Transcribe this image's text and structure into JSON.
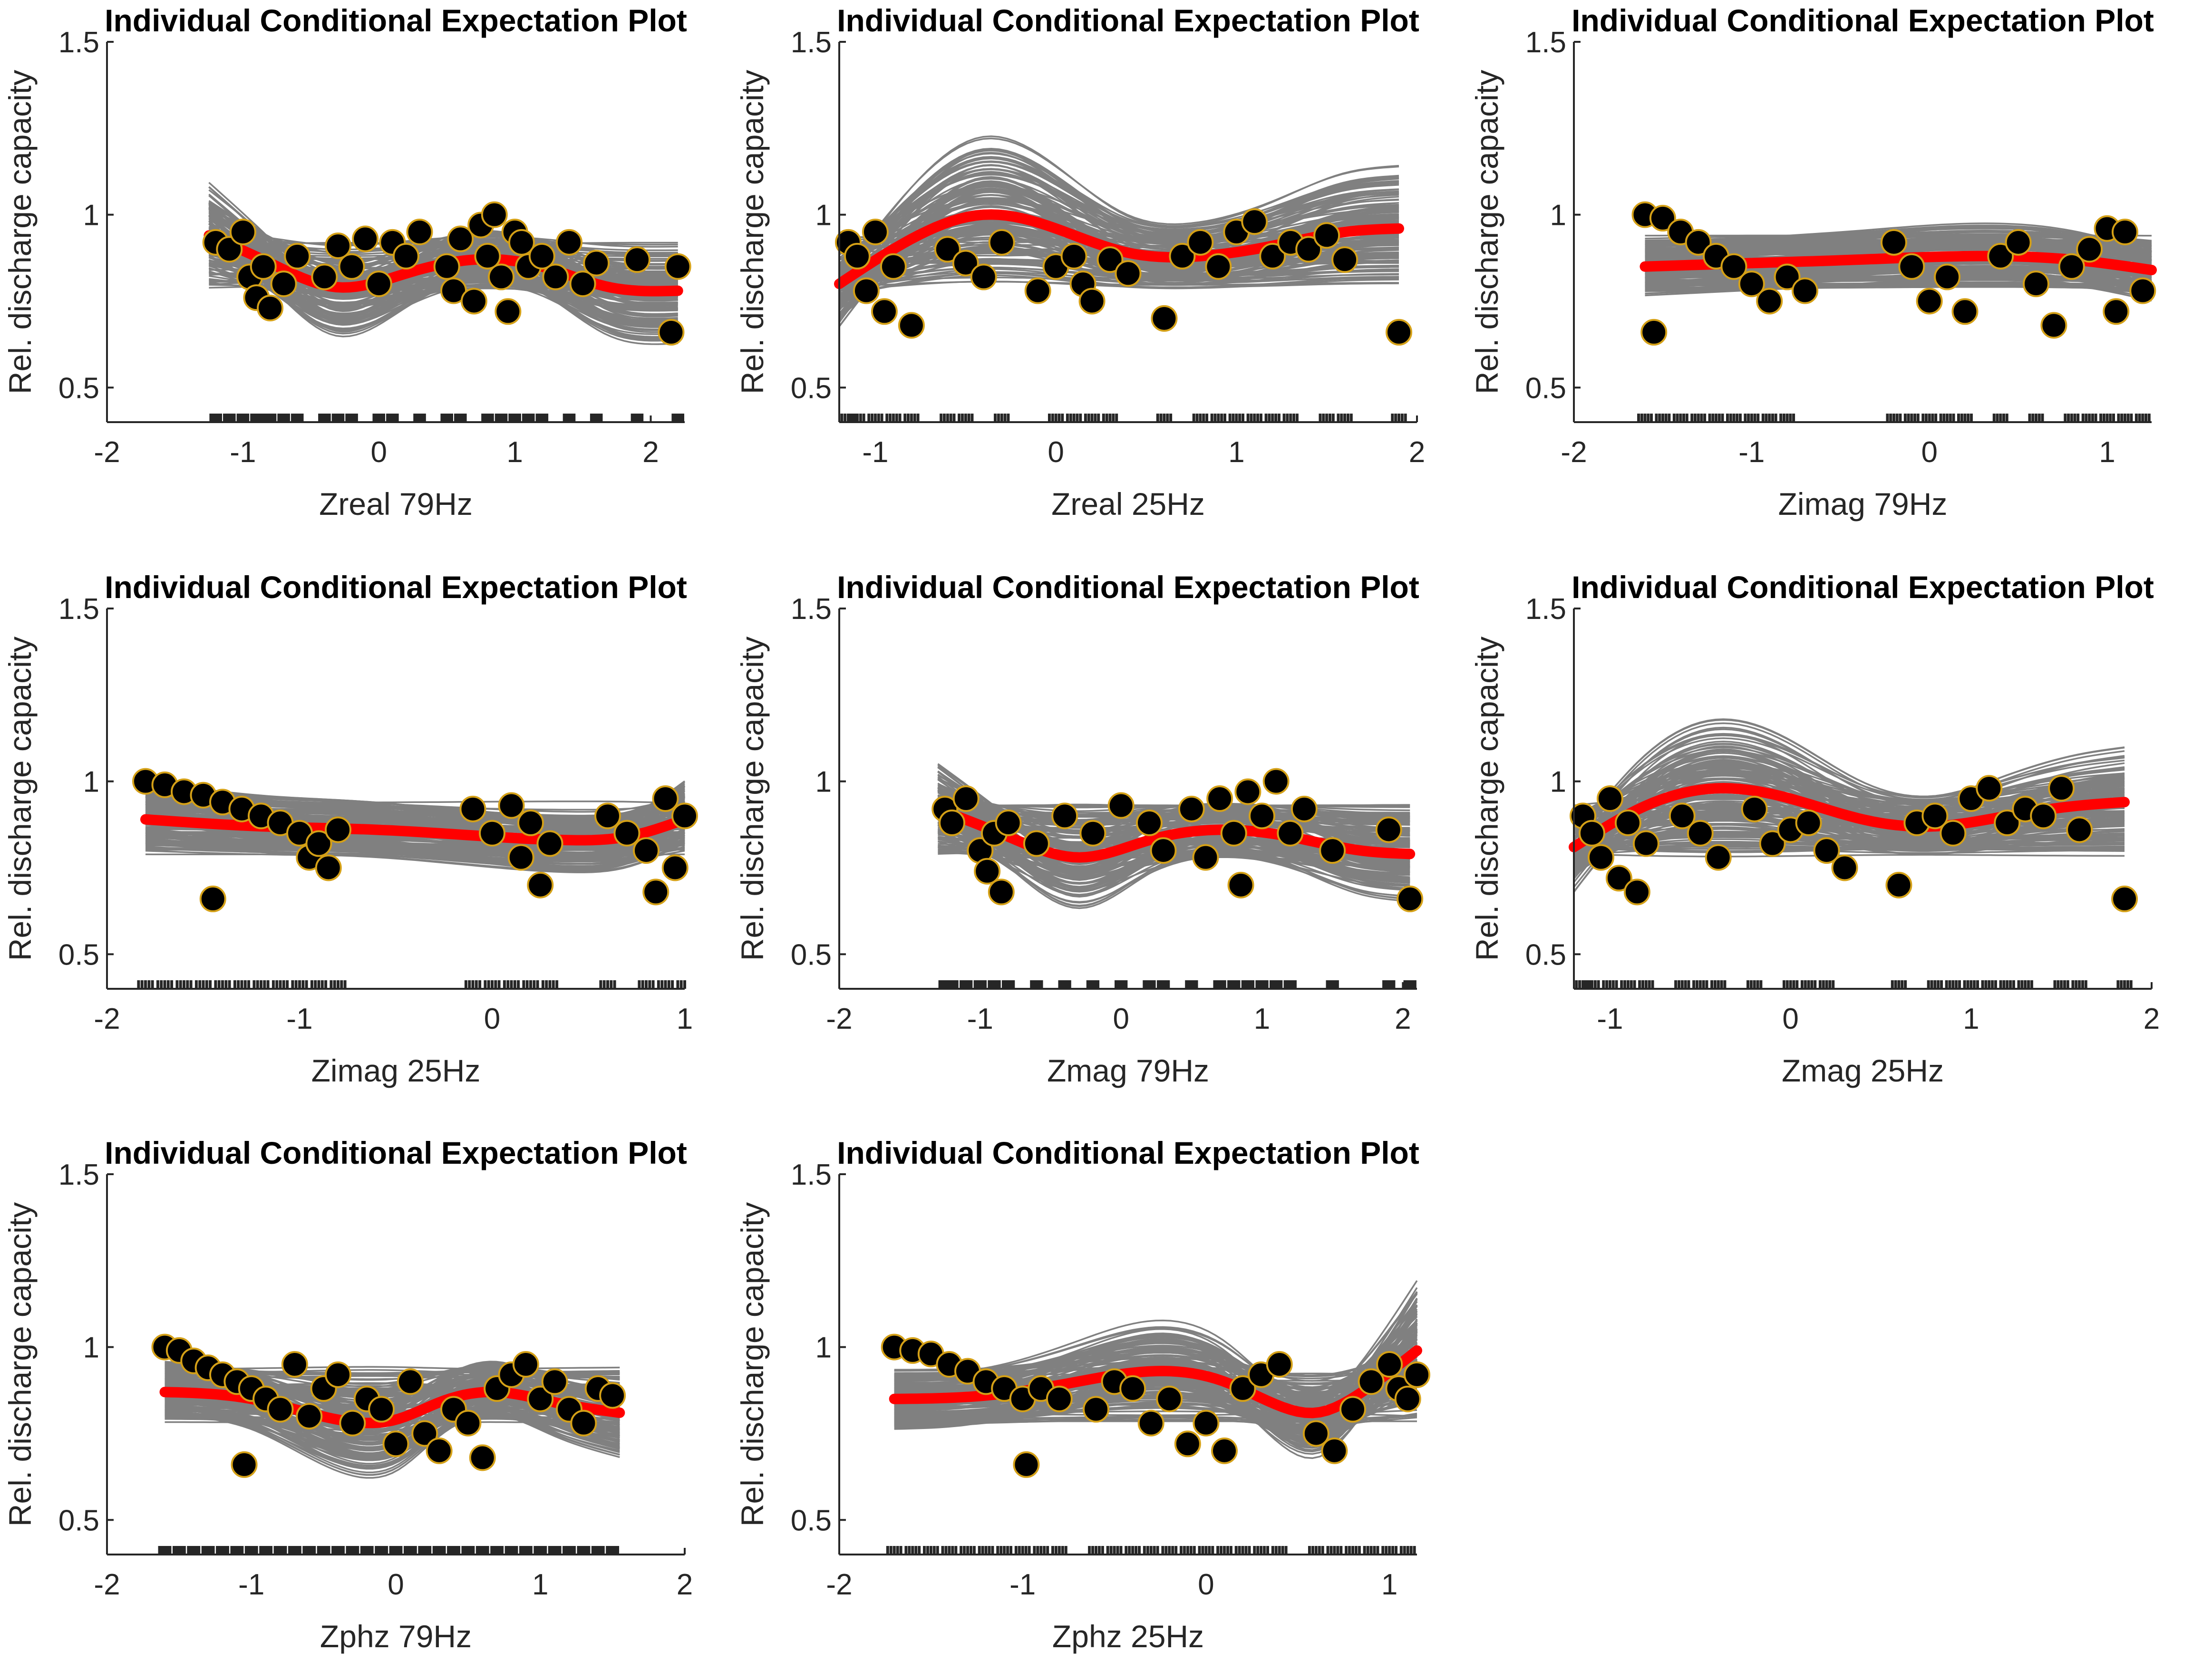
{
  "chart_data": [
    {
      "type": "line",
      "title": "Individual Conditional Expectation Plot",
      "xlabel": "Zreal 79Hz",
      "ylabel": "Rel. discharge capacity",
      "xlim": [
        -2,
        2.25
      ],
      "ylim": [
        0.4,
        1.5
      ],
      "xticks": [
        -2,
        -1,
        0,
        1,
        2
      ],
      "yticks": [
        0.5,
        1,
        1.5
      ],
      "grid": false,
      "xrange": [
        -1.25,
        2.2
      ],
      "pdp": {
        "x": [
          -1.25,
          -0.8,
          -0.3,
          0.2,
          0.7,
          1.2,
          1.7,
          2.2
        ],
        "y": [
          0.94,
          0.86,
          0.79,
          0.83,
          0.87,
          0.85,
          0.79,
          0.78
        ]
      },
      "scatter": {
        "x": [
          -1.2,
          -1.1,
          -1.0,
          -0.95,
          -0.9,
          -0.85,
          -0.8,
          -0.7,
          -0.6,
          -0.4,
          -0.3,
          -0.2,
          -0.1,
          0.0,
          0.1,
          0.2,
          0.3,
          0.5,
          0.55,
          0.6,
          0.7,
          0.75,
          0.8,
          0.85,
          0.9,
          0.95,
          1.0,
          1.05,
          1.1,
          1.2,
          1.3,
          1.4,
          1.5,
          1.6,
          1.9,
          2.15,
          2.2
        ],
        "y": [
          0.92,
          0.9,
          0.95,
          0.82,
          0.76,
          0.85,
          0.73,
          0.8,
          0.88,
          0.82,
          0.91,
          0.85,
          0.93,
          0.8,
          0.92,
          0.88,
          0.95,
          0.85,
          0.78,
          0.93,
          0.75,
          0.97,
          0.88,
          1.0,
          0.82,
          0.72,
          0.95,
          0.92,
          0.85,
          0.88,
          0.82,
          0.92,
          0.8,
          0.86,
          0.87,
          0.66,
          0.85
        ]
      },
      "rug": [
        -1.2,
        -1.1,
        -1.0,
        -0.9,
        -0.85,
        -0.8,
        -0.7,
        -0.6,
        -0.4,
        -0.3,
        -0.2,
        0.0,
        0.1,
        0.3,
        0.5,
        0.6,
        0.8,
        0.9,
        1.0,
        1.1,
        1.2,
        1.4,
        1.6,
        1.9,
        2.2
      ]
    },
    {
      "type": "line",
      "title": "Individual Conditional Expectation Plot",
      "xlabel": "Zreal 25Hz",
      "ylabel": "Rel. discharge capacity",
      "xlim": [
        -1.2,
        2
      ],
      "ylim": [
        0.4,
        1.5
      ],
      "xticks": [
        -1,
        0,
        1,
        2
      ],
      "yticks": [
        0.5,
        1,
        1.5
      ],
      "grid": false,
      "xrange": [
        -1.2,
        1.9
      ],
      "pdp": {
        "x": [
          -1.2,
          -0.8,
          -0.4,
          0.0,
          0.4,
          0.8,
          1.2,
          1.6,
          1.9
        ],
        "y": [
          0.8,
          0.93,
          1.0,
          0.96,
          0.89,
          0.88,
          0.91,
          0.95,
          0.96
        ]
      },
      "scatter": {
        "x": [
          -1.15,
          -1.1,
          -1.05,
          -1.0,
          -0.95,
          -0.9,
          -0.8,
          -0.6,
          -0.5,
          -0.4,
          -0.3,
          -0.1,
          0.0,
          0.1,
          0.15,
          0.2,
          0.3,
          0.4,
          0.6,
          0.7,
          0.8,
          0.9,
          1.0,
          1.1,
          1.2,
          1.3,
          1.4,
          1.5,
          1.6,
          1.9
        ],
        "y": [
          0.92,
          0.88,
          0.78,
          0.95,
          0.72,
          0.85,
          0.68,
          0.9,
          0.86,
          0.82,
          0.92,
          0.78,
          0.85,
          0.88,
          0.8,
          0.75,
          0.87,
          0.83,
          0.7,
          0.88,
          0.92,
          0.85,
          0.95,
          0.98,
          0.88,
          0.92,
          0.9,
          0.94,
          0.87,
          0.66
        ]
      },
      "rug": [
        -1.15,
        -1.1,
        -1.0,
        -0.9,
        -0.8,
        -0.6,
        -0.5,
        -0.3,
        0.0,
        0.1,
        0.2,
        0.3,
        0.6,
        0.8,
        0.9,
        1.0,
        1.1,
        1.2,
        1.3,
        1.5,
        1.6,
        1.9
      ]
    },
    {
      "type": "line",
      "title": "Individual Conditional Expectation Plot",
      "xlabel": "Zimag 79Hz",
      "ylabel": "Rel. discharge capacity",
      "xlim": [
        -2,
        1.25
      ],
      "ylim": [
        0.4,
        1.5
      ],
      "xticks": [
        -2,
        -1,
        0,
        1
      ],
      "yticks": [
        0.5,
        1,
        1.5
      ],
      "grid": false,
      "xrange": [
        -1.6,
        1.25
      ],
      "pdp": {
        "x": [
          -1.6,
          -1.0,
          -0.4,
          0.2,
          0.8,
          1.25
        ],
        "y": [
          0.85,
          0.86,
          0.87,
          0.88,
          0.87,
          0.84
        ]
      },
      "scatter": {
        "x": [
          -1.6,
          -1.55,
          -1.5,
          -1.4,
          -1.3,
          -1.2,
          -1.1,
          -1.0,
          -0.9,
          -0.8,
          -0.7,
          -0.2,
          -0.1,
          0.0,
          0.1,
          0.2,
          0.4,
          0.5,
          0.6,
          0.7,
          0.8,
          0.9,
          1.0,
          1.05,
          1.1,
          1.2
        ],
        "y": [
          1.0,
          0.66,
          0.99,
          0.95,
          0.92,
          0.88,
          0.85,
          0.8,
          0.75,
          0.82,
          0.78,
          0.92,
          0.85,
          0.75,
          0.82,
          0.72,
          0.88,
          0.92,
          0.8,
          0.68,
          0.85,
          0.9,
          0.96,
          0.72,
          0.95,
          0.78
        ]
      },
      "rug": [
        -1.6,
        -1.5,
        -1.4,
        -1.3,
        -1.2,
        -1.1,
        -1.0,
        -0.9,
        -0.8,
        -0.2,
        -0.1,
        0.0,
        0.1,
        0.2,
        0.4,
        0.6,
        0.8,
        0.9,
        1.0,
        1.1,
        1.2
      ]
    },
    {
      "type": "line",
      "title": "Individual Conditional Expectation Plot",
      "xlabel": "Zimag 25Hz",
      "ylabel": "Rel. discharge capacity",
      "xlim": [
        -2,
        1
      ],
      "ylim": [
        0.4,
        1.5
      ],
      "xticks": [
        -2,
        -1,
        0,
        1
      ],
      "yticks": [
        0.5,
        1,
        1.5
      ],
      "grid": false,
      "xrange": [
        -1.8,
        1.0
      ],
      "pdp": {
        "x": [
          -1.8,
          -1.2,
          -0.6,
          0.0,
          0.4,
          0.7,
          1.0
        ],
        "y": [
          0.89,
          0.87,
          0.86,
          0.84,
          0.83,
          0.84,
          0.89
        ]
      },
      "scatter": {
        "x": [
          -1.8,
          -1.7,
          -1.6,
          -1.5,
          -1.45,
          -1.4,
          -1.3,
          -1.2,
          -1.1,
          -1.0,
          -0.95,
          -0.9,
          -0.85,
          -0.8,
          -0.1,
          0.0,
          0.1,
          0.15,
          0.2,
          0.25,
          0.3,
          0.6,
          0.7,
          0.8,
          0.85,
          0.9,
          0.95,
          1.0
        ],
        "y": [
          1.0,
          0.99,
          0.97,
          0.96,
          0.66,
          0.94,
          0.92,
          0.9,
          0.88,
          0.85,
          0.78,
          0.82,
          0.75,
          0.86,
          0.92,
          0.85,
          0.93,
          0.78,
          0.88,
          0.7,
          0.82,
          0.9,
          0.85,
          0.8,
          0.68,
          0.95,
          0.75,
          0.9
        ]
      },
      "rug": [
        -1.8,
        -1.7,
        -1.6,
        -1.5,
        -1.4,
        -1.3,
        -1.2,
        -1.1,
        -1.0,
        -0.9,
        -0.8,
        -0.1,
        0.0,
        0.1,
        0.2,
        0.3,
        0.6,
        0.8,
        0.9,
        1.0
      ]
    },
    {
      "type": "line",
      "title": "Individual Conditional Expectation Plot",
      "xlabel": "Zmag 79Hz",
      "ylabel": "Rel. discharge capacity",
      "xlim": [
        -2,
        2.1
      ],
      "ylim": [
        0.4,
        1.5
      ],
      "xticks": [
        -2,
        -1,
        0,
        1,
        2
      ],
      "yticks": [
        0.5,
        1,
        1.5
      ],
      "grid": false,
      "xrange": [
        -1.3,
        2.05
      ],
      "pdp": {
        "x": [
          -1.3,
          -0.8,
          -0.3,
          0.2,
          0.7,
          1.2,
          1.7,
          2.05
        ],
        "y": [
          0.92,
          0.84,
          0.78,
          0.83,
          0.86,
          0.84,
          0.8,
          0.79
        ]
      },
      "scatter": {
        "x": [
          -1.25,
          -1.2,
          -1.1,
          -1.0,
          -0.95,
          -0.9,
          -0.85,
          -0.8,
          -0.6,
          -0.4,
          -0.2,
          0.0,
          0.2,
          0.3,
          0.5,
          0.6,
          0.7,
          0.8,
          0.85,
          0.9,
          1.0,
          1.1,
          1.2,
          1.3,
          1.5,
          1.9,
          2.05
        ],
        "y": [
          0.92,
          0.88,
          0.95,
          0.8,
          0.74,
          0.85,
          0.68,
          0.88,
          0.82,
          0.9,
          0.85,
          0.93,
          0.88,
          0.8,
          0.92,
          0.78,
          0.95,
          0.85,
          0.7,
          0.97,
          0.9,
          1.0,
          0.85,
          0.92,
          0.8,
          0.86,
          0.66
        ]
      },
      "rug": [
        -1.25,
        -1.2,
        -1.1,
        -1.0,
        -0.9,
        -0.8,
        -0.6,
        -0.4,
        -0.2,
        0.0,
        0.2,
        0.3,
        0.5,
        0.7,
        0.8,
        0.9,
        1.0,
        1.1,
        1.2,
        1.5,
        1.9,
        2.05
      ]
    },
    {
      "type": "line",
      "title": "Individual Conditional Expectation Plot",
      "xlabel": "Zmag 25Hz",
      "ylabel": "Rel. discharge capacity",
      "xlim": [
        -1.2,
        2
      ],
      "ylim": [
        0.4,
        1.5
      ],
      "xticks": [
        -1,
        0,
        1,
        2
      ],
      "yticks": [
        0.5,
        1,
        1.5
      ],
      "grid": false,
      "xrange": [
        -1.2,
        1.85
      ],
      "pdp": {
        "x": [
          -1.2,
          -0.8,
          -0.4,
          0.0,
          0.4,
          0.8,
          1.2,
          1.6,
          1.85
        ],
        "y": [
          0.81,
          0.93,
          0.98,
          0.95,
          0.89,
          0.87,
          0.9,
          0.93,
          0.94
        ]
      },
      "scatter": {
        "x": [
          -1.15,
          -1.1,
          -1.05,
          -1.0,
          -0.95,
          -0.9,
          -0.85,
          -0.8,
          -0.6,
          -0.5,
          -0.4,
          -0.2,
          -0.1,
          0.0,
          0.1,
          0.2,
          0.3,
          0.6,
          0.7,
          0.8,
          0.9,
          1.0,
          1.1,
          1.2,
          1.3,
          1.4,
          1.5,
          1.6,
          1.85
        ],
        "y": [
          0.9,
          0.85,
          0.78,
          0.95,
          0.72,
          0.88,
          0.68,
          0.82,
          0.9,
          0.85,
          0.78,
          0.92,
          0.82,
          0.86,
          0.88,
          0.8,
          0.75,
          0.7,
          0.88,
          0.9,
          0.85,
          0.95,
          0.98,
          0.88,
          0.92,
          0.9,
          0.98,
          0.86,
          0.66
        ]
      },
      "rug": [
        -1.15,
        -1.1,
        -1.0,
        -0.9,
        -0.8,
        -0.6,
        -0.5,
        -0.4,
        -0.2,
        0.0,
        0.1,
        0.2,
        0.6,
        0.8,
        0.9,
        1.0,
        1.1,
        1.2,
        1.3,
        1.5,
        1.6,
        1.85
      ]
    },
    {
      "type": "line",
      "title": "Individual Conditional Expectation Plot",
      "xlabel": "Zphz 79Hz",
      "ylabel": "Rel. discharge capacity",
      "xlim": [
        -2,
        2
      ],
      "ylim": [
        0.4,
        1.5
      ],
      "xticks": [
        -2,
        -1,
        0,
        1,
        2
      ],
      "yticks": [
        0.5,
        1,
        1.5
      ],
      "grid": false,
      "xrange": [
        -1.6,
        1.55
      ],
      "pdp": {
        "x": [
          -1.6,
          -1.0,
          -0.4,
          0.0,
          0.3,
          0.7,
          1.1,
          1.55
        ],
        "y": [
          0.87,
          0.85,
          0.79,
          0.79,
          0.84,
          0.87,
          0.84,
          0.81
        ]
      },
      "scatter": {
        "x": [
          -1.6,
          -1.5,
          -1.4,
          -1.3,
          -1.2,
          -1.1,
          -1.05,
          -1.0,
          -0.9,
          -0.8,
          -0.7,
          -0.6,
          -0.5,
          -0.4,
          -0.3,
          -0.2,
          -0.1,
          0.0,
          0.1,
          0.2,
          0.3,
          0.4,
          0.5,
          0.6,
          0.7,
          0.8,
          0.9,
          1.0,
          1.1,
          1.2,
          1.3,
          1.4,
          1.5
        ],
        "y": [
          1.0,
          0.99,
          0.96,
          0.94,
          0.92,
          0.9,
          0.66,
          0.88,
          0.85,
          0.82,
          0.95,
          0.8,
          0.88,
          0.92,
          0.78,
          0.85,
          0.82,
          0.72,
          0.9,
          0.75,
          0.7,
          0.82,
          0.78,
          0.68,
          0.88,
          0.92,
          0.95,
          0.85,
          0.9,
          0.82,
          0.78,
          0.88,
          0.86
        ]
      },
      "rug": [
        -1.6,
        -1.5,
        -1.4,
        -1.3,
        -1.2,
        -1.1,
        -1.0,
        -0.9,
        -0.8,
        -0.7,
        -0.6,
        -0.5,
        -0.4,
        -0.3,
        -0.2,
        -0.1,
        0.0,
        0.1,
        0.2,
        0.3,
        0.4,
        0.5,
        0.6,
        0.7,
        0.8,
        0.9,
        1.0,
        1.1,
        1.2,
        1.3,
        1.4,
        1.5
      ]
    },
    {
      "type": "line",
      "title": "Individual Conditional Expectation Plot",
      "xlabel": "Zphz 25Hz",
      "ylabel": "Rel. discharge capacity",
      "xlim": [
        -2,
        1.15
      ],
      "ylim": [
        0.4,
        1.5
      ],
      "xticks": [
        -2,
        -1,
        0,
        1
      ],
      "yticks": [
        0.5,
        1,
        1.5
      ],
      "grid": false,
      "xrange": [
        -1.7,
        1.15
      ],
      "pdp": {
        "x": [
          -1.7,
          -1.2,
          -0.7,
          -0.3,
          0.1,
          0.4,
          0.6,
          0.85,
          1.15
        ],
        "y": [
          0.85,
          0.86,
          0.9,
          0.93,
          0.9,
          0.83,
          0.81,
          0.87,
          0.99
        ]
      },
      "scatter": {
        "x": [
          -1.7,
          -1.6,
          -1.5,
          -1.4,
          -1.3,
          -1.2,
          -1.1,
          -1.0,
          -0.98,
          -0.9,
          -0.8,
          -0.6,
          -0.5,
          -0.4,
          -0.3,
          -0.2,
          -0.1,
          0.0,
          0.1,
          0.2,
          0.3,
          0.4,
          0.6,
          0.7,
          0.8,
          0.9,
          1.0,
          1.05,
          1.1,
          1.15
        ],
        "y": [
          1.0,
          0.99,
          0.98,
          0.95,
          0.93,
          0.9,
          0.88,
          0.85,
          0.66,
          0.88,
          0.85,
          0.82,
          0.9,
          0.88,
          0.78,
          0.85,
          0.72,
          0.78,
          0.7,
          0.88,
          0.92,
          0.95,
          0.75,
          0.7,
          0.82,
          0.9,
          0.95,
          0.88,
          0.85,
          0.92
        ]
      },
      "rug": [
        -1.7,
        -1.6,
        -1.5,
        -1.4,
        -1.3,
        -1.2,
        -1.1,
        -1.0,
        -0.9,
        -0.8,
        -0.6,
        -0.5,
        -0.4,
        -0.3,
        -0.2,
        -0.1,
        0.0,
        0.1,
        0.2,
        0.3,
        0.4,
        0.6,
        0.7,
        0.8,
        0.9,
        1.0,
        1.1
      ]
    }
  ],
  "colors": {
    "ice": "#808080",
    "pdp": "#ff0000",
    "marker_fill": "#000000",
    "marker_edge": "#d4a017",
    "axis": "#262626"
  }
}
